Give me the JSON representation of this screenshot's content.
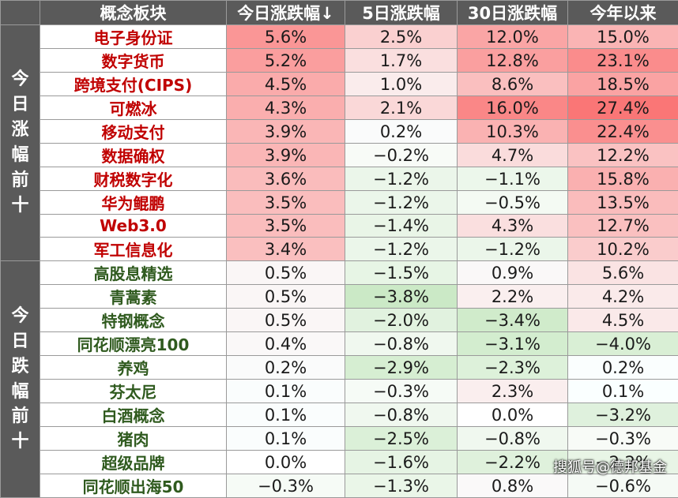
{
  "headers": [
    "",
    "概念板块",
    "今日涨跌幅↓",
    "5日涨跌幅",
    "30日涨跌幅",
    "今年以来"
  ],
  "groups": [
    {
      "label": "今日涨幅前十",
      "type": "up",
      "start": 0,
      "count": 10
    },
    {
      "label": "今日跌幅前十",
      "type": "down",
      "start": 10,
      "count": 10
    }
  ],
  "rows": [
    {
      "name": "电子身份证",
      "today": "5.6%",
      "d5": "2.5%",
      "d30": "12.0%",
      "ytd": "15.0%"
    },
    {
      "name": "数字货币",
      "today": "5.2%",
      "d5": "1.7%",
      "d30": "12.8%",
      "ytd": "23.1%"
    },
    {
      "name": "跨境支付(CIPS)",
      "today": "4.5%",
      "d5": "1.0%",
      "d30": "8.6%",
      "ytd": "18.5%"
    },
    {
      "name": "可燃冰",
      "today": "4.3%",
      "d5": "2.1%",
      "d30": "16.0%",
      "ytd": "27.4%"
    },
    {
      "name": "移动支付",
      "today": "3.9%",
      "d5": "0.2%",
      "d30": "10.3%",
      "ytd": "22.4%"
    },
    {
      "name": "数据确权",
      "today": "3.9%",
      "d5": "−0.2%",
      "d30": "4.7%",
      "ytd": "12.2%"
    },
    {
      "name": "财税数字化",
      "today": "3.6%",
      "d5": "−1.2%",
      "d30": "−1.1%",
      "ytd": "15.8%"
    },
    {
      "name": "华为鲲鹏",
      "today": "3.5%",
      "d5": "−1.2%",
      "d30": "−0.5%",
      "ytd": "13.5%"
    },
    {
      "name": "Web3.0",
      "today": "3.5%",
      "d5": "−1.4%",
      "d30": "4.3%",
      "ytd": "12.7%"
    },
    {
      "name": "军工信息化",
      "today": "3.4%",
      "d5": "−1.2%",
      "d30": "−1.2%",
      "ytd": "10.2%"
    },
    {
      "name": "高股息精选",
      "today": "0.5%",
      "d5": "−1.5%",
      "d30": "0.9%",
      "ytd": "5.6%"
    },
    {
      "name": "青蒿素",
      "today": "0.5%",
      "d5": "−3.8%",
      "d30": "2.2%",
      "ytd": "4.2%"
    },
    {
      "name": "特钢概念",
      "today": "0.5%",
      "d5": "−2.0%",
      "d30": "−3.4%",
      "ytd": "4.5%"
    },
    {
      "name": "同花顺漂亮100",
      "today": "0.4%",
      "d5": "−0.8%",
      "d30": "−3.1%",
      "ytd": "−4.0%"
    },
    {
      "name": "养鸡",
      "today": "0.2%",
      "d5": "−2.9%",
      "d30": "−2.3%",
      "ytd": "0.2%"
    },
    {
      "name": "芬太尼",
      "today": "0.1%",
      "d5": "−0.3%",
      "d30": "2.3%",
      "ytd": "0.1%"
    },
    {
      "name": "白酒概念",
      "today": "0.1%",
      "d5": "−0.8%",
      "d30": "0.0%",
      "ytd": "−3.2%"
    },
    {
      "name": "猪肉",
      "today": "0.1%",
      "d5": "−2.5%",
      "d30": "−0.8%",
      "ytd": "−0.3%"
    },
    {
      "name": "超级品牌",
      "today": "0.0%",
      "d5": "−1.6%",
      "d30": "−2.2%",
      "ytd": "−2.2%"
    },
    {
      "name": "同花顺出海50",
      "today": "−0.3%",
      "d5": "−1.3%",
      "d30": "0.8%",
      "ytd": "−0.6%"
    }
  ],
  "watermark": "搜狐号@德邦基金"
}
